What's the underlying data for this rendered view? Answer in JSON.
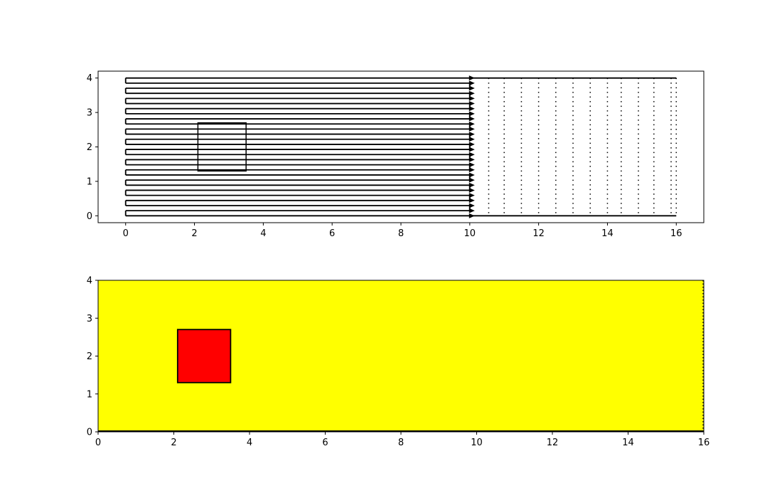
{
  "chart_data": [
    {
      "type": "scatter",
      "title": "",
      "xlabel": "",
      "ylabel": "",
      "xlim": [
        -0.8,
        16.8
      ],
      "ylim": [
        -0.2,
        4.2
      ],
      "xticks": [
        0,
        2,
        4,
        6,
        8,
        10,
        12,
        14,
        16
      ],
      "yticks": [
        0,
        1,
        2,
        3,
        4
      ],
      "grid": false,
      "legend": "none",
      "colors": {
        "lines": "#000000",
        "background": "#ffffff"
      },
      "streamlines": {
        "x_start": 0,
        "x_end": 10,
        "y_start": 0,
        "y_end": 4,
        "count": 28,
        "arrowhead": "triangle"
      },
      "dotted_columns": {
        "x": [
          10.55,
          11.0,
          11.5,
          12.0,
          12.5,
          13.0,
          13.5,
          14.0,
          14.4,
          14.9,
          15.35,
          15.85,
          16.0
        ],
        "y_range": [
          0,
          4
        ]
      },
      "top_edge_line": {
        "x": [
          10,
          16
        ],
        "y": 4
      },
      "bottom_edge_line": {
        "x": [
          10,
          16
        ],
        "y": 0
      },
      "obstacle_rect": {
        "x0": 2.1,
        "x1": 3.5,
        "y0": 1.3,
        "y1": 2.7
      }
    },
    {
      "type": "heatmap",
      "title": "",
      "xlabel": "",
      "ylabel": "",
      "xlim": [
        0,
        16
      ],
      "ylim": [
        0,
        4
      ],
      "xticks": [
        0,
        2,
        4,
        6,
        8,
        10,
        12,
        14,
        16
      ],
      "yticks": [
        0,
        1,
        2,
        3,
        4
      ],
      "grid": false,
      "legend": "none",
      "colors": {
        "field": "#ffff00",
        "obstacle": "#ff0000",
        "edge": "#000000"
      },
      "field_rect": {
        "x0": 0,
        "x1": 16,
        "y0": 0,
        "y1": 4
      },
      "obstacle_rect": {
        "x0": 2.1,
        "x1": 3.5,
        "y0": 1.3,
        "y1": 2.7
      }
    }
  ]
}
